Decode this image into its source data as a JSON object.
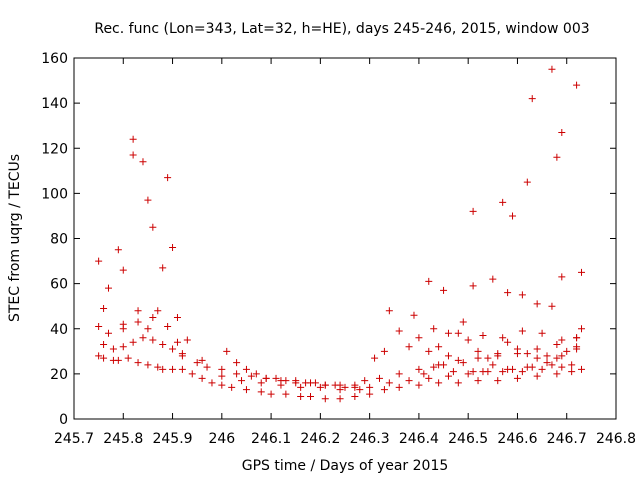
{
  "chart_data": {
    "type": "scatter",
    "title": "Rec. func (Lon=343, Lat=32, h=HE), days 245-246, 2015, window 003",
    "xlabel": "GPS time / Days of year 2015",
    "ylabel": "STEC from uqrg / TECUs",
    "xlim": [
      245.7,
      246.8
    ],
    "ylim": [
      0,
      160
    ],
    "xticks": [
      245.7,
      245.8,
      245.9,
      246.0,
      246.1,
      246.2,
      246.3,
      246.4,
      246.5,
      246.6,
      246.7,
      246.8
    ],
    "xtick_labels": [
      "245.7",
      "245.8",
      "245.9",
      "246",
      "246.1",
      "246.2",
      "246.3",
      "246.4",
      "246.5",
      "246.6",
      "246.7",
      "246.8"
    ],
    "yticks": [
      0,
      20,
      40,
      60,
      80,
      100,
      120,
      140,
      160
    ],
    "ytick_labels": [
      "0",
      "20",
      "40",
      "60",
      "80",
      "100",
      "120",
      "140",
      "160"
    ],
    "grid": false,
    "marker": "plus",
    "color": "#cc0000",
    "x": [
      245.75,
      245.75,
      245.76,
      245.77,
      245.79,
      245.8,
      245.82,
      245.82,
      245.84,
      245.85,
      245.86,
      245.88,
      245.89,
      245.9,
      245.91,
      245.93,
      245.75,
      245.76,
      245.78,
      245.79,
      245.81,
      245.83,
      245.85,
      245.87,
      245.88,
      245.9,
      245.92,
      245.94,
      245.96,
      245.98,
      246.0,
      246.02,
      246.05,
      246.08,
      246.1,
      246.13,
      246.16,
      246.18,
      246.21,
      246.24,
      246.27,
      246.3,
      246.33,
      246.36,
      246.4,
      246.44,
      246.48,
      246.52,
      246.56,
      246.6,
      246.64,
      246.68,
      246.71,
      246.73,
      245.76,
      245.78,
      245.8,
      245.82,
      245.84,
      245.86,
      245.88,
      245.9,
      245.92,
      245.95,
      245.97,
      246.0,
      246.03,
      246.06,
      246.09,
      246.12,
      246.15,
      246.18,
      246.21,
      246.24,
      246.27,
      246.3,
      246.34,
      246.38,
      246.42,
      246.46,
      246.5,
      246.54,
      246.58,
      246.62,
      246.66,
      246.69,
      246.72,
      245.77,
      245.8,
      245.83,
      245.86,
      245.89,
      245.92,
      245.96,
      246.0,
      246.04,
      246.08,
      246.12,
      246.16,
      246.2,
      246.24,
      246.28,
      246.32,
      246.36,
      246.4,
      246.44,
      246.48,
      246.52,
      246.56,
      246.6,
      246.64,
      246.68,
      246.72,
      246.01,
      246.03,
      246.05,
      246.07,
      246.09,
      246.11,
      246.13,
      246.15,
      246.17,
      246.19,
      246.21,
      246.23,
      246.25,
      246.27,
      246.29,
      246.31,
      246.34,
      246.36,
      246.38,
      246.4,
      246.42,
      246.44,
      246.46,
      246.48,
      246.5,
      246.52,
      246.54,
      246.56,
      246.58,
      246.6,
      246.62,
      246.64,
      246.66,
      246.68,
      246.7,
      246.72,
      246.73,
      246.41,
      246.43,
      246.45,
      246.47,
      246.49,
      246.51,
      246.53,
      246.55,
      246.57,
      246.59,
      246.61,
      246.63,
      246.65,
      246.67,
      246.69,
      246.71,
      246.39,
      246.43,
      246.46,
      246.49,
      246.53,
      246.57,
      246.61,
      246.65,
      246.69,
      246.72,
      246.33,
      246.42,
      246.45,
      246.51,
      246.55,
      246.58,
      246.61,
      246.64,
      246.67,
      246.69,
      246.73,
      245.83,
      245.87,
      245.8,
      245.85,
      245.91,
      246.51,
      246.59,
      246.62,
      246.63,
      246.68,
      246.67,
      246.69,
      246.72,
      246.57
    ],
    "y": [
      70,
      41,
      49,
      58,
      75,
      66,
      124,
      117,
      114,
      97,
      85,
      67,
      107,
      76,
      45,
      35,
      28,
      27,
      26,
      26,
      27,
      25,
      24,
      23,
      22,
      22,
      22,
      20,
      18,
      16,
      15,
      14,
      13,
      12,
      11,
      11,
      10,
      10,
      9,
      9,
      10,
      11,
      13,
      14,
      15,
      16,
      16,
      17,
      17,
      18,
      19,
      20,
      21,
      22,
      33,
      31,
      32,
      34,
      36,
      35,
      33,
      31,
      28,
      25,
      23,
      22,
      20,
      19,
      18,
      17,
      16,
      16,
      15,
      15,
      14,
      14,
      16,
      17,
      18,
      19,
      20,
      21,
      22,
      23,
      25,
      28,
      31,
      38,
      40,
      43,
      45,
      41,
      29,
      26,
      19,
      17,
      16,
      15,
      14,
      14,
      13,
      13,
      18,
      20,
      22,
      24,
      26,
      27,
      28,
      29,
      31,
      33,
      36,
      30,
      25,
      22,
      20,
      18,
      18,
      17,
      17,
      16,
      16,
      15,
      15,
      14,
      15,
      17,
      27,
      48,
      39,
      32,
      36,
      30,
      32,
      28,
      38,
      35,
      30,
      27,
      29,
      34,
      31,
      29,
      27,
      28,
      27,
      30,
      32,
      40,
      20,
      23,
      24,
      21,
      25,
      21,
      21,
      24,
      21,
      22,
      21,
      23,
      22,
      24,
      23,
      24,
      46,
      40,
      38,
      43,
      37,
      36,
      39,
      38,
      35,
      36,
      30,
      61,
      57,
      59,
      62,
      56,
      55,
      51,
      50,
      63,
      65,
      48,
      48,
      42,
      40,
      34,
      92,
      90,
      105,
      142,
      116,
      155,
      127,
      148,
      96
    ]
  }
}
